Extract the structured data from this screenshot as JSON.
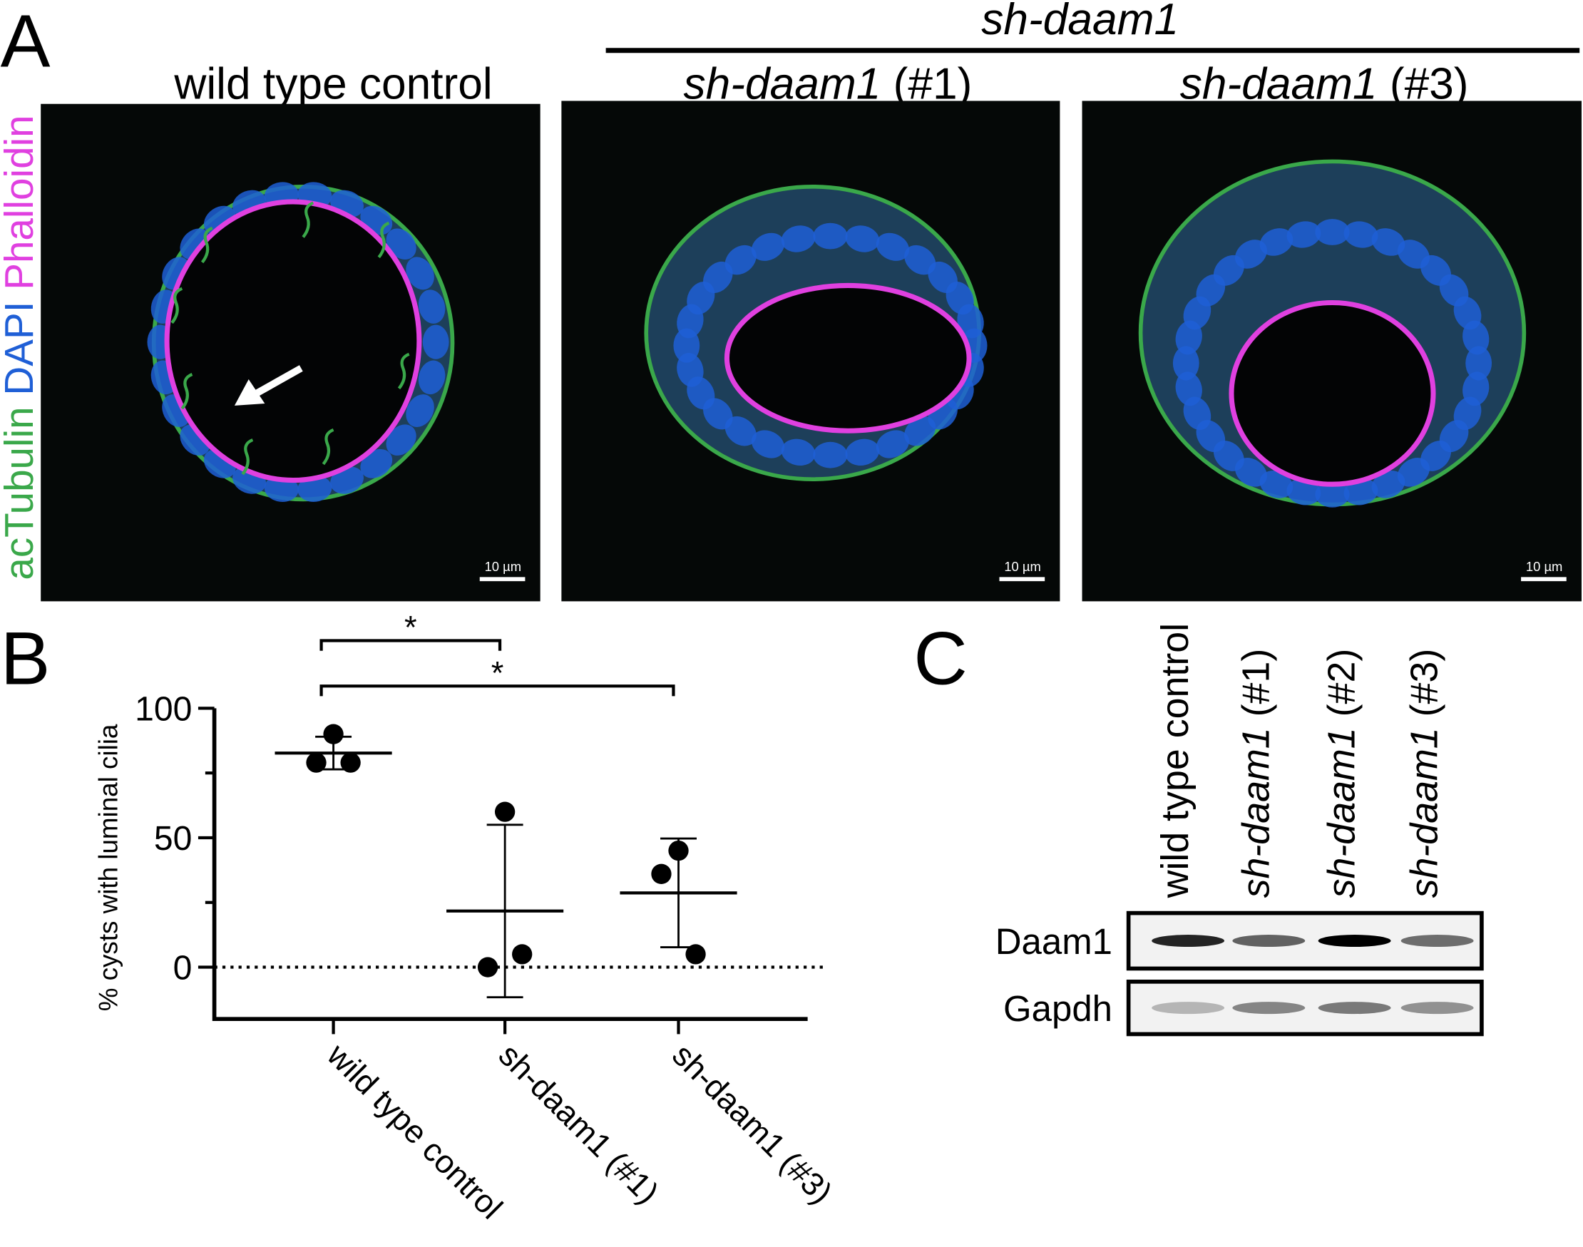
{
  "panel_a": {
    "label": "A",
    "group_header": "sh-daam1",
    "titles": [
      {
        "text": "wild type control"
      },
      {
        "italic": "sh-daam1",
        "text": " (#1)"
      },
      {
        "italic": "sh-daam1",
        "text": " (#3)"
      }
    ],
    "channels": [
      {
        "name": "acTubulin",
        "color": "#3aa84a"
      },
      {
        "name": "DAPI",
        "color": "#1f5fd6"
      },
      {
        "name": "Phalloidin",
        "color": "#e040e0"
      }
    ],
    "scale_bar": "10 µm"
  },
  "chart_data": {
    "type": "dot-plot",
    "panel_label": "B",
    "y_label": "% cysts with luminal cilia",
    "categories": [
      "wild type control",
      "sh-daam1 (#1)",
      "sh-daam1 (#3)"
    ],
    "points": [
      [
        90,
        79,
        79
      ],
      [
        60,
        0,
        5
      ],
      [
        45,
        36,
        5
      ]
    ],
    "means": [
      82.7,
      21.7,
      28.7
    ],
    "sds": [
      6.3,
      33.3,
      21
    ],
    "color": "#000000",
    "ylim": [
      -20,
      100
    ],
    "yticks": [
      0,
      50,
      100
    ],
    "yminor": [
      25,
      75
    ],
    "zero_line": true,
    "significance": [
      {
        "label": "*",
        "between": [
          0,
          1
        ]
      },
      {
        "label": "*",
        "between": [
          0,
          2
        ]
      }
    ]
  },
  "panel_c": {
    "label": "C",
    "lanes": [
      {
        "text": "wild type control"
      },
      {
        "italic": "sh-daam1",
        "text": " (#1)"
      },
      {
        "italic": "sh-daam1",
        "text": " (#2)"
      },
      {
        "italic": "sh-daam1",
        "text": " (#3)"
      }
    ],
    "rows": [
      "Daam1",
      "Gapdh"
    ]
  }
}
